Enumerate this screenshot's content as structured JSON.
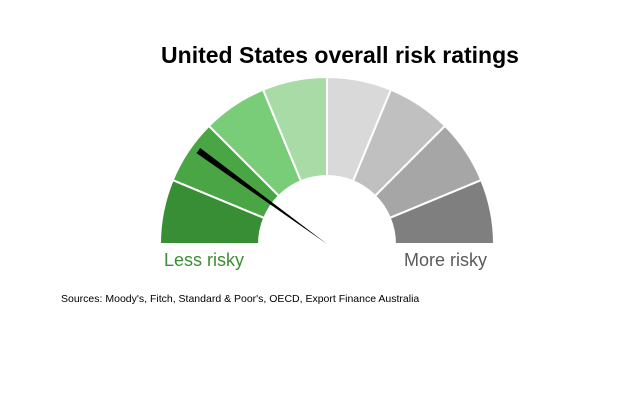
{
  "chart_data": {
    "type": "gauge",
    "title": "United States overall risk ratings",
    "segments": [
      {
        "rank": 1,
        "color": "#388e35"
      },
      {
        "rank": 2,
        "color": "#4aa544"
      },
      {
        "rank": 3,
        "color": "#7acd78"
      },
      {
        "rank": 4,
        "color": "#a9dba6"
      },
      {
        "rank": 5,
        "color": "#d9d9d9"
      },
      {
        "rank": 6,
        "color": "#c0c0c0"
      },
      {
        "rank": 7,
        "color": "#a6a6a6"
      },
      {
        "rank": 8,
        "color": "#7f7f7f"
      }
    ],
    "needle_value": 1.6,
    "needle_scale": [
      0,
      8
    ],
    "labels": {
      "low": "Less risky",
      "high": "More risky",
      "low_color": "#3b8e33",
      "high_color": "#5a5a5a"
    },
    "source": "Sources: Moody's, Fitch, Standard & Poor's, OECD, Export Finance Australia"
  }
}
